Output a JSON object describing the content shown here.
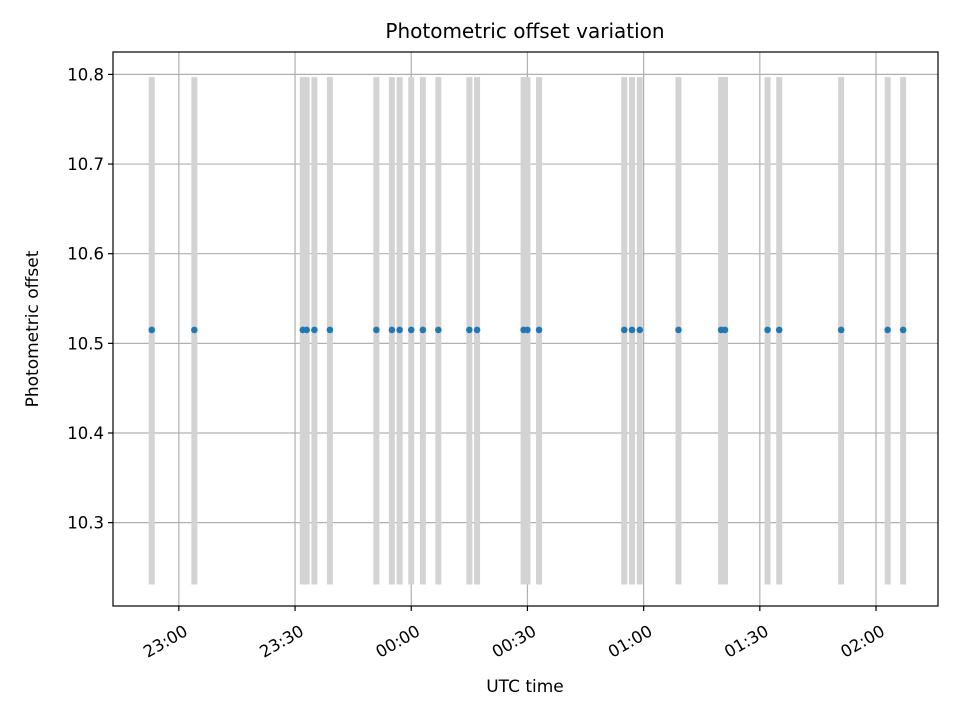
{
  "chart_data": {
    "type": "scatter",
    "title": "Photometric offset variation",
    "xlabel": "UTC time",
    "ylabel": "Photometric offset",
    "x_axis": "time",
    "xlim": [
      "22:43",
      "02:16"
    ],
    "ylim": [
      10.207,
      10.825
    ],
    "x_ticks": [
      "23:00",
      "23:30",
      "00:00",
      "00:30",
      "01:00",
      "01:30",
      "02:00"
    ],
    "y_ticks": [
      10.3,
      10.4,
      10.5,
      10.6,
      10.7,
      10.8
    ],
    "y_tick_labels": [
      "10.3",
      "10.4",
      "10.5",
      "10.6",
      "10.7",
      "10.8"
    ],
    "grid": true,
    "point_color": "#1f77b4",
    "band_color": "#d3d3d3",
    "bands": {
      "ymin": 10.231,
      "ymax": 10.797
    },
    "series": [
      {
        "x": [
          "22:53",
          "23:04",
          "23:32",
          "23:33",
          "23:35",
          "23:39",
          "23:51",
          "23:55",
          "23:57",
          "00:00",
          "00:03",
          "00:07",
          "00:15",
          "00:17",
          "00:29",
          "00:30",
          "00:33",
          "00:55",
          "00:57",
          "00:59",
          "01:09",
          "01:20",
          "01:21",
          "01:32",
          "01:35",
          "01:51",
          "02:03",
          "02:07"
        ],
        "y": [
          10.515,
          10.515,
          10.515,
          10.515,
          10.515,
          10.515,
          10.515,
          10.515,
          10.515,
          10.515,
          10.515,
          10.515,
          10.515,
          10.515,
          10.515,
          10.515,
          10.515,
          10.515,
          10.515,
          10.515,
          10.515,
          10.515,
          10.515,
          10.515,
          10.515,
          10.515,
          10.515,
          10.515
        ]
      }
    ]
  }
}
